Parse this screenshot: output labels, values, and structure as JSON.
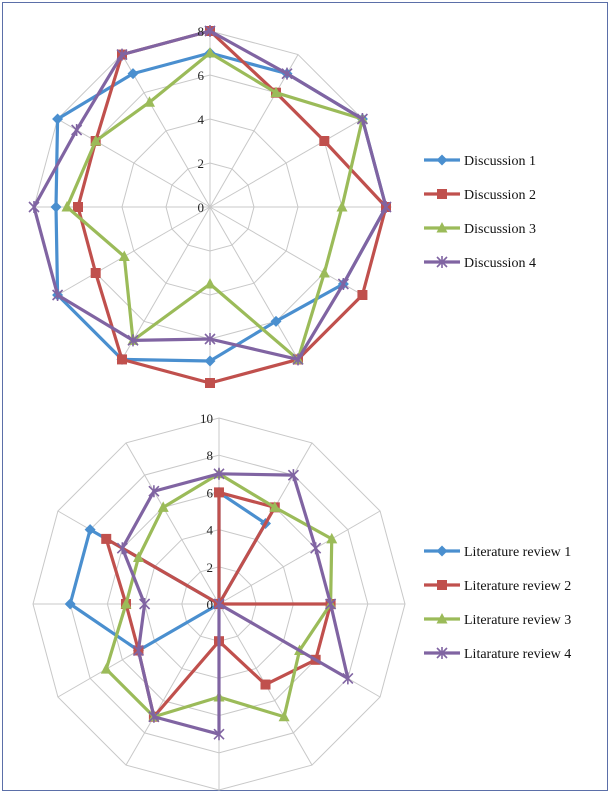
{
  "chart_data": [
    {
      "type": "radar",
      "spokes": 12,
      "rmax": 8,
      "ticks": [
        "0",
        "2",
        "4",
        "6",
        "8"
      ],
      "tick_values": [
        0,
        2,
        4,
        6,
        8
      ],
      "grid": true,
      "legend_position": "right",
      "series": [
        {
          "name": "Discussion 1",
          "color": "#4a8fcf",
          "marker": "diamond",
          "values": [
            7,
            7,
            8,
            8,
            7,
            6,
            7,
            8,
            8,
            7,
            8,
            7
          ]
        },
        {
          "name": "Discussion 2",
          "color": "#c0504d",
          "marker": "square",
          "values": [
            8,
            6,
            6,
            8,
            8,
            8,
            8,
            8,
            6,
            6,
            6,
            8
          ]
        },
        {
          "name": "Discussion 3",
          "color": "#9bbb59",
          "marker": "triangle",
          "values": [
            7,
            6,
            8,
            6,
            6,
            8,
            3.5,
            7,
            4.5,
            6.5,
            6,
            5.5
          ]
        },
        {
          "name": "Discussion 4",
          "color": "#8064a2",
          "marker": "x",
          "values": [
            8,
            7,
            8,
            8,
            7,
            8,
            6,
            7,
            8,
            8,
            7,
            8
          ]
        }
      ]
    },
    {
      "type": "radar",
      "spokes": 12,
      "rmax": 10,
      "ticks": [
        "0",
        "2",
        "4",
        "6",
        "8",
        "10"
      ],
      "tick_values": [
        0,
        2,
        4,
        6,
        8,
        10
      ],
      "grid": true,
      "legend_position": "right",
      "series": [
        {
          "name": "Literature review 1",
          "color": "#4a8fcf",
          "marker": "diamond",
          "values": [
            6,
            5,
            0,
            0,
            0,
            0,
            0,
            0,
            5,
            8,
            8,
            0
          ]
        },
        {
          "name": "Literature review 2",
          "color": "#c0504d",
          "marker": "square",
          "values": [
            6,
            6,
            0,
            6,
            6,
            5,
            2,
            7,
            5,
            5,
            7,
            0
          ]
        },
        {
          "name": "Literature review 3",
          "color": "#9bbb59",
          "marker": "triangle",
          "values": [
            7,
            6,
            7,
            6,
            5,
            7,
            5,
            7,
            7,
            5,
            5,
            6
          ]
        },
        {
          "name": "Litarature review 4",
          "color": "#8064a2",
          "marker": "x",
          "values": [
            7,
            8,
            6,
            6,
            8,
            0,
            7,
            7,
            5,
            4,
            6,
            7
          ]
        }
      ]
    }
  ]
}
